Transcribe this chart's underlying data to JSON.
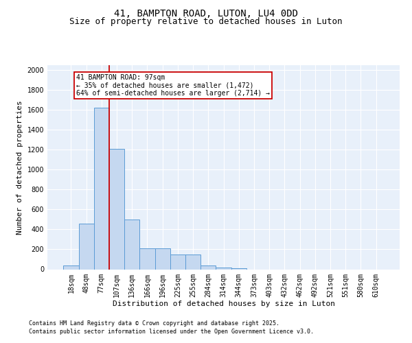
{
  "title1": "41, BAMPTON ROAD, LUTON, LU4 0DD",
  "title2": "Size of property relative to detached houses in Luton",
  "xlabel": "Distribution of detached houses by size in Luton",
  "ylabel": "Number of detached properties",
  "bar_labels": [
    "18sqm",
    "48sqm",
    "77sqm",
    "107sqm",
    "136sqm",
    "166sqm",
    "196sqm",
    "225sqm",
    "255sqm",
    "284sqm",
    "314sqm",
    "344sqm",
    "373sqm",
    "403sqm",
    "432sqm",
    "462sqm",
    "492sqm",
    "521sqm",
    "551sqm",
    "580sqm",
    "610sqm"
  ],
  "bar_values": [
    35,
    460,
    1620,
    1210,
    500,
    210,
    210,
    150,
    150,
    35,
    20,
    10,
    0,
    0,
    0,
    0,
    0,
    0,
    0,
    0,
    0
  ],
  "bar_color": "#c5d8f0",
  "bar_edge_color": "#5b9bd5",
  "bg_color": "#e8f0fa",
  "grid_color": "#ffffff",
  "vline_color": "#cc0000",
  "annotation_text": "41 BAMPTON ROAD: 97sqm\n← 35% of detached houses are smaller (1,472)\n64% of semi-detached houses are larger (2,714) →",
  "annotation_box_color": "#ffffff",
  "annotation_box_edge": "#cc0000",
  "ylim": [
    0,
    2050
  ],
  "yticks": [
    0,
    200,
    400,
    600,
    800,
    1000,
    1200,
    1400,
    1600,
    1800,
    2000
  ],
  "footer1": "Contains HM Land Registry data © Crown copyright and database right 2025.",
  "footer2": "Contains public sector information licensed under the Open Government Licence v3.0.",
  "title_fontsize": 10,
  "subtitle_fontsize": 9,
  "tick_fontsize": 7,
  "label_fontsize": 8,
  "footer_fontsize": 6
}
